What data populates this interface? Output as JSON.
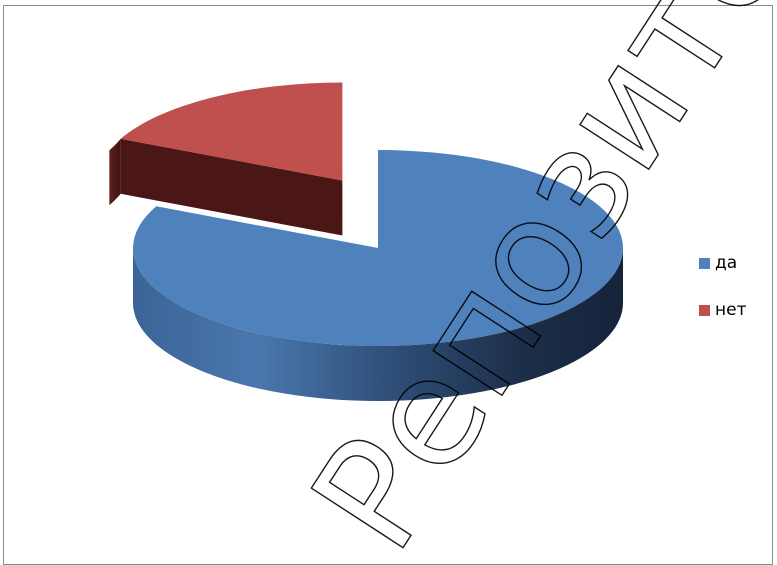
{
  "chart_data": {
    "type": "pie",
    "style": "3d-exploded",
    "categories": [
      "да",
      "нет"
    ],
    "values": [
      82,
      18
    ],
    "colors": [
      "#4f81bd",
      "#c0504d"
    ],
    "legend": {
      "position": "right",
      "entries": [
        "да",
        "нет"
      ]
    }
  },
  "watermark": {
    "text": "Репозиторий БНТУ"
  }
}
